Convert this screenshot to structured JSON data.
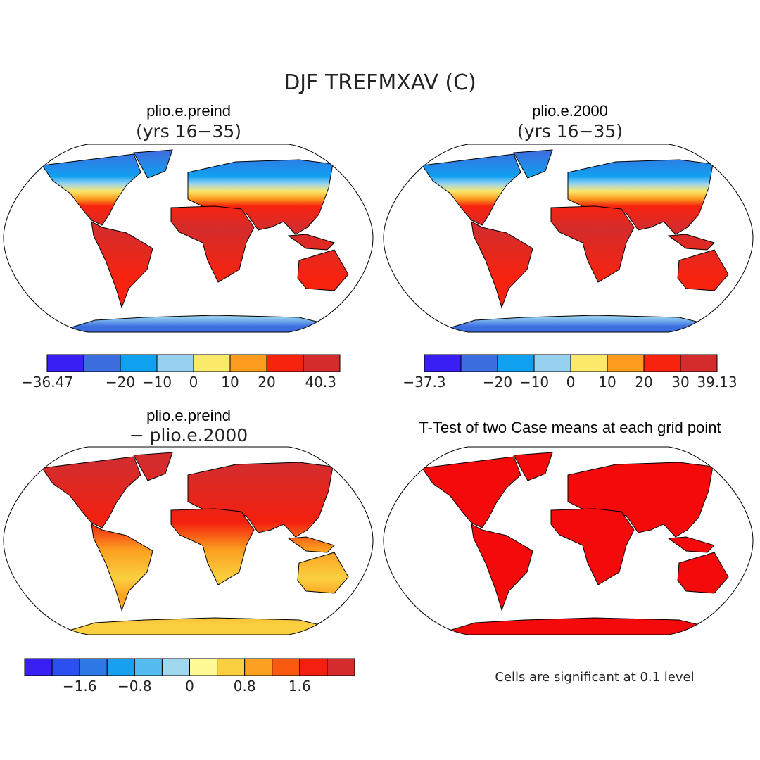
{
  "title": "DJF TREFMXAV (C)",
  "panels": [
    {
      "title": "plio.e.preind",
      "subtitle": "(yrs 16−35)",
      "colorbar": {
        "colors": [
          "#3a1ff5",
          "#3c6ee0",
          "#10a0f0",
          "#96d2f0",
          "#fbe96a",
          "#fb9c1e",
          "#f8230f",
          "#d42c2c"
        ],
        "labels": [
          "−36.47",
          null,
          "−20",
          "−10",
          "0",
          "10",
          "20",
          null,
          "40.3"
        ]
      }
    },
    {
      "title": "plio.e.2000",
      "subtitle": "(yrs 16−35)",
      "colorbar": {
        "colors": [
          "#3a1ff5",
          "#3c6ee0",
          "#10a0f0",
          "#96d2f0",
          "#fbe96a",
          "#fb9c1e",
          "#f8230f",
          "#d42c2c"
        ],
        "labels": [
          "−37.3",
          null,
          "−20",
          "−10",
          "0",
          "10",
          "20",
          "30",
          "39.13"
        ]
      }
    },
    {
      "title": "plio.e.preind",
      "subtitle": "− plio.e.2000",
      "colorbar": {
        "colors": [
          "#3a1ff5",
          "#2a50f0",
          "#2e78e6",
          "#18a0f0",
          "#54bcee",
          "#a0d8f0",
          "#fffa96",
          "#fbd040",
          "#fba020",
          "#fa5a0f",
          "#f41f0e",
          "#d42c2c"
        ],
        "labels": [
          null,
          null,
          "−1.6",
          null,
          "−0.8",
          null,
          "0",
          null,
          "0.8",
          null,
          "1.6",
          null,
          null
        ]
      }
    },
    {
      "title": "T-Test of two Case means at each grid point",
      "note": "Cells are significant at 0.1 level"
    }
  ]
}
